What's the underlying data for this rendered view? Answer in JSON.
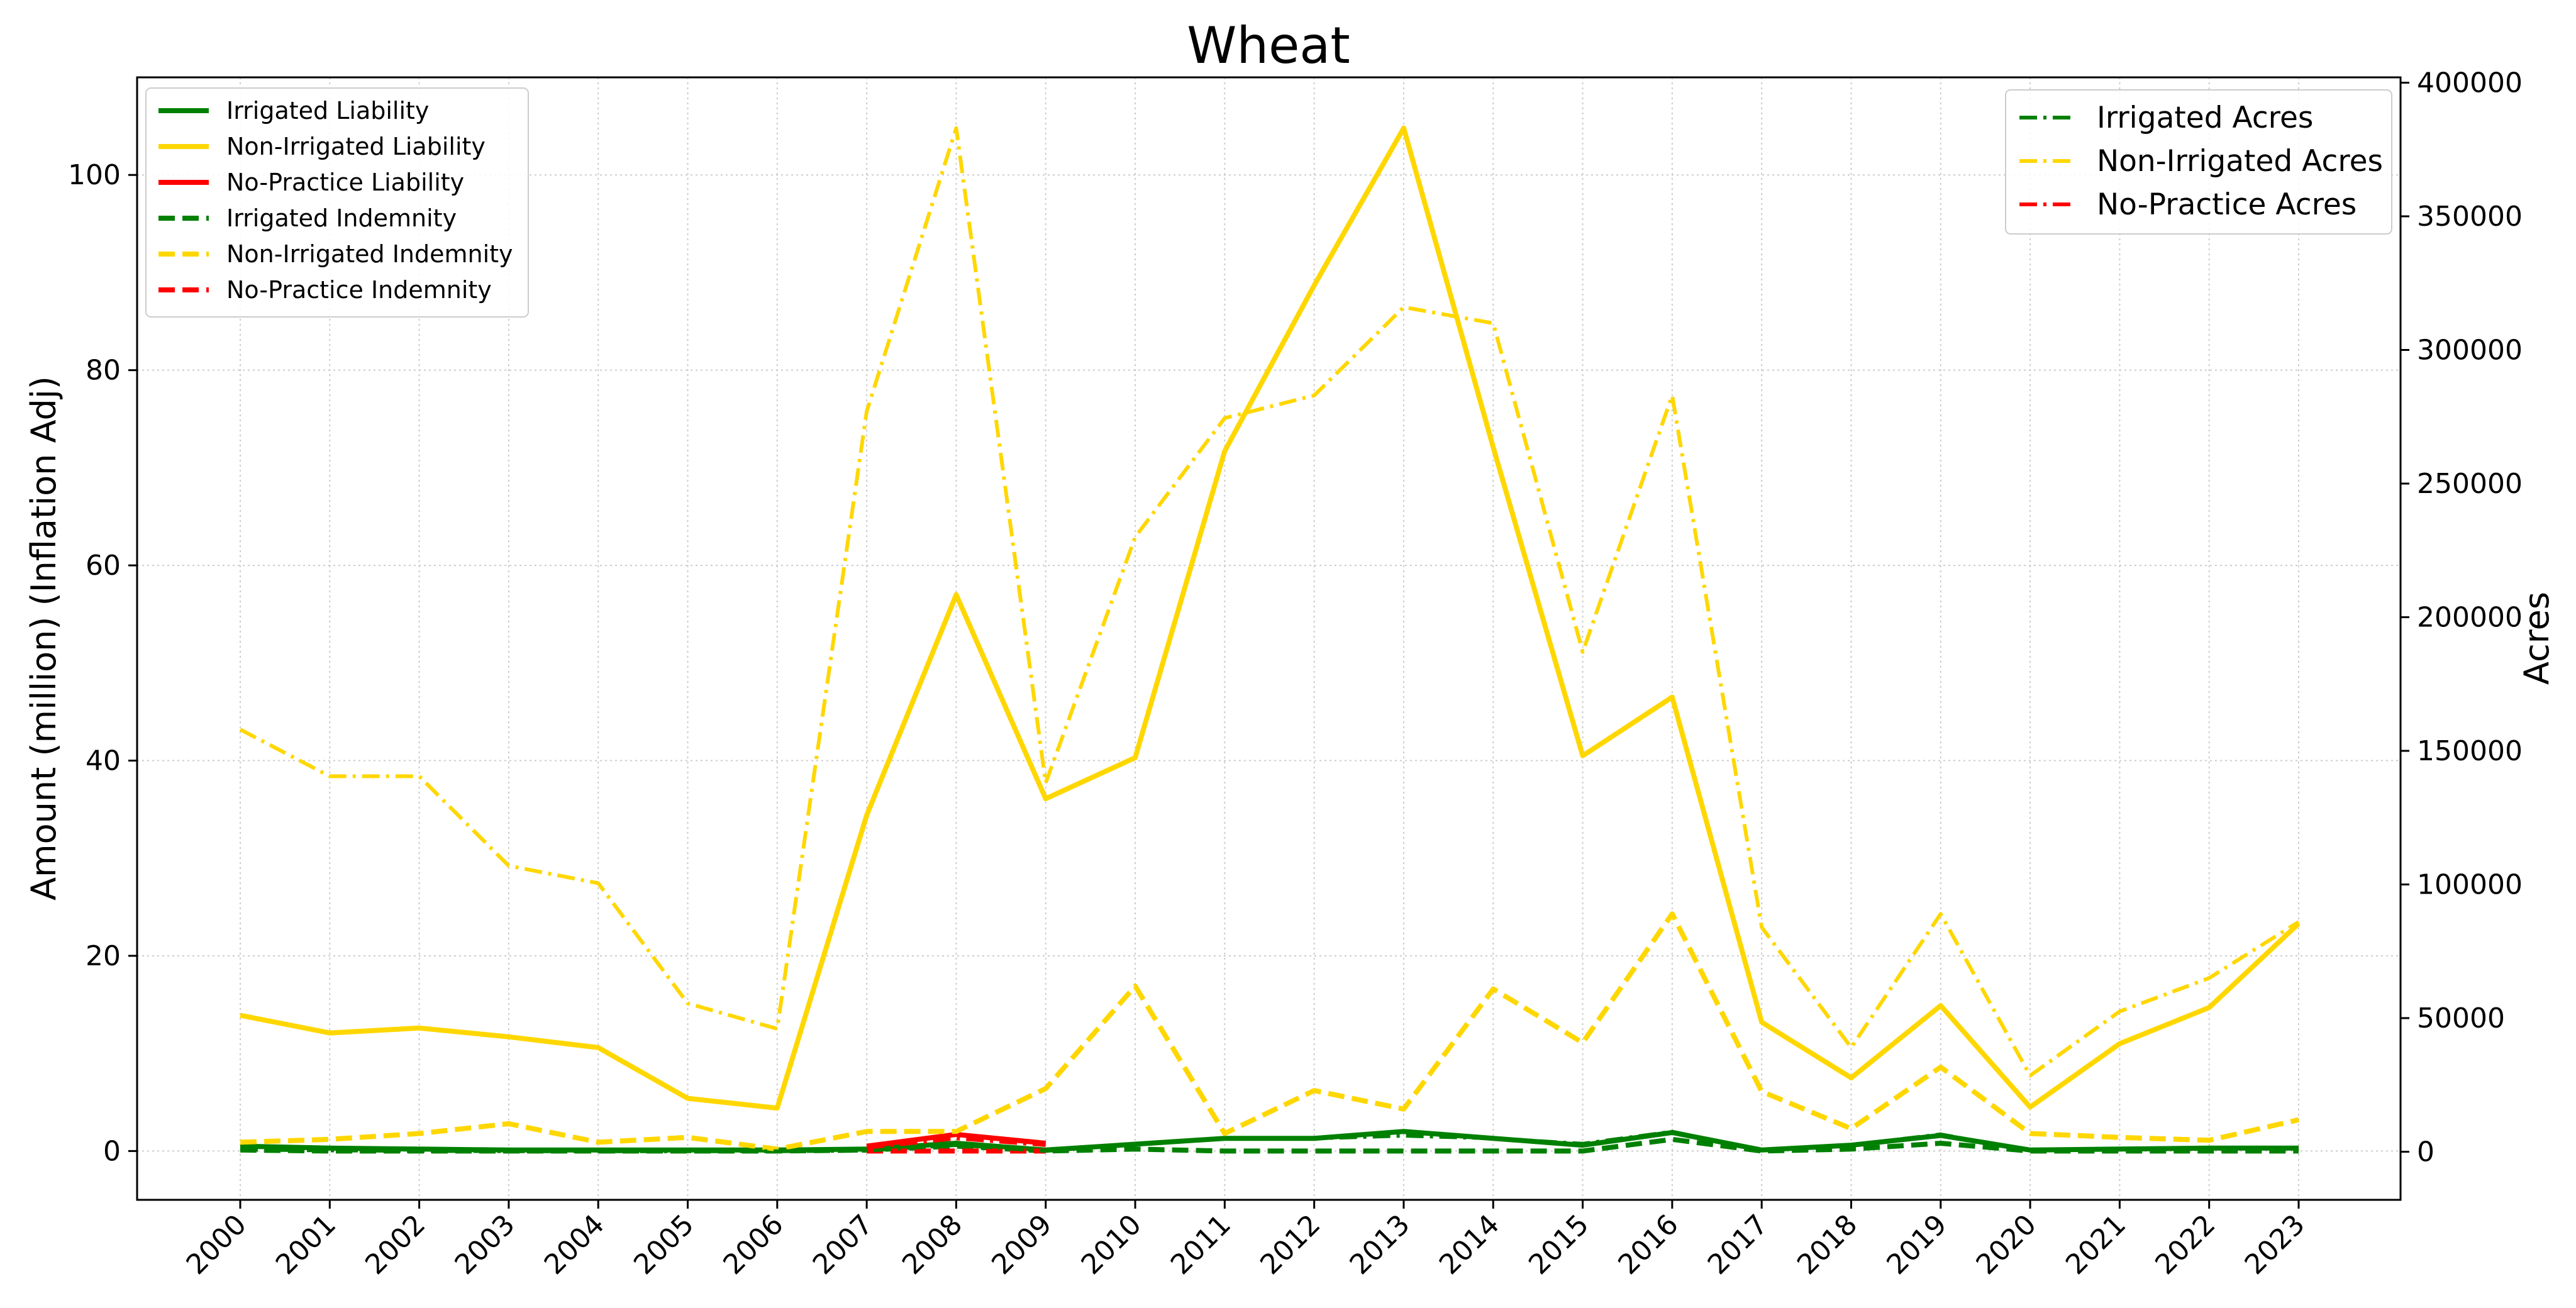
{
  "chart_data": {
    "type": "line",
    "title": "Wheat",
    "xlabel": "",
    "ylabel": "Amount (million) (Inflation Adj)",
    "y2label": "Acres",
    "categories": [
      "2000",
      "2001",
      "2002",
      "2003",
      "2004",
      "2005",
      "2006",
      "2007",
      "2008",
      "2009",
      "2010",
      "2011",
      "2012",
      "2013",
      "2014",
      "2015",
      "2016",
      "2017",
      "2018",
      "2019",
      "2020",
      "2021",
      "2022",
      "2023"
    ],
    "ylim": [
      -5,
      110
    ],
    "y2lim": [
      -18000,
      402000
    ],
    "yticks": [
      0,
      20,
      40,
      60,
      80,
      100
    ],
    "y2ticks": [
      0,
      50000,
      100000,
      150000,
      200000,
      250000,
      300000,
      350000,
      400000
    ],
    "grid": true,
    "legend_left_placement": "upper-left",
    "legend_right_placement": "upper-right",
    "colors": {
      "irrigated": "#008000",
      "non_irrigated": "#FFD700",
      "no_practice": "#FF0000"
    },
    "series": [
      {
        "name": "Irrigated Liability",
        "axis": "left",
        "color": "#008000",
        "style": "solid",
        "values": [
          0.5,
          0.3,
          0.2,
          0.1,
          0.1,
          0.1,
          0.1,
          0.2,
          0.8,
          0.1,
          0.7,
          1.3,
          1.3,
          2.0,
          1.3,
          0.6,
          1.9,
          0.1,
          0.6,
          1.6,
          0.1,
          0.2,
          0.3,
          0.3
        ]
      },
      {
        "name": "Non-Irrigated Liability",
        "axis": "left",
        "color": "#FFD700",
        "style": "solid",
        "values": [
          13.9,
          12.1,
          12.6,
          11.7,
          10.6,
          5.4,
          4.4,
          34.4,
          57.0,
          36.1,
          40.3,
          71.7,
          88.7,
          104.8,
          72.1,
          40.5,
          46.5,
          13.2,
          7.5,
          14.9,
          4.5,
          11.0,
          14.7,
          23.3
        ]
      },
      {
        "name": "No-Practice Liability",
        "axis": "left",
        "color": "#FF0000",
        "style": "solid",
        "x": [
          "2007",
          "2008",
          "2009"
        ],
        "values": [
          0.5,
          1.7,
          0.8
        ]
      },
      {
        "name": "Irrigated Indemnity",
        "axis": "left",
        "color": "#008000",
        "style": "dashed",
        "values": [
          0.1,
          0.0,
          0.0,
          0.0,
          0.0,
          0.0,
          0.0,
          0.1,
          0.5,
          0.0,
          0.2,
          0.0,
          0.0,
          0.0,
          0.0,
          0.0,
          1.2,
          0.0,
          0.2,
          0.8,
          0.0,
          0.0,
          0.0,
          0.0
        ]
      },
      {
        "name": "Non-Irrigated Indemnity",
        "axis": "left",
        "color": "#FFD700",
        "style": "dashed",
        "values": [
          0.9,
          1.2,
          1.8,
          2.8,
          0.9,
          1.4,
          0.2,
          2.0,
          2.0,
          6.4,
          16.9,
          1.8,
          6.2,
          4.3,
          16.6,
          11.1,
          24.3,
          6.1,
          2.3,
          8.6,
          1.8,
          1.4,
          1.1,
          3.2
        ]
      },
      {
        "name": "No-Practice Indemnity",
        "axis": "left",
        "color": "#FF0000",
        "style": "dashed",
        "x": [
          "2007",
          "2008",
          "2009"
        ],
        "values": [
          0.0,
          0.0,
          0.0
        ]
      },
      {
        "name": "Irrigated Acres",
        "axis": "right",
        "color": "#008000",
        "style": "dashdot",
        "values": [
          800,
          500,
          300,
          200,
          200,
          200,
          200,
          400,
          2500,
          300,
          3000,
          5000,
          5000,
          6000,
          5000,
          3000,
          7500,
          500,
          2500,
          6500,
          400,
          800,
          1200,
          1200
        ]
      },
      {
        "name": "Non-Irrigated Acres",
        "axis": "right",
        "color": "#FFD700",
        "style": "dashdot",
        "values": [
          158000,
          140500,
          140500,
          107000,
          100500,
          55500,
          46000,
          277000,
          383000,
          138000,
          230000,
          274500,
          283000,
          316000,
          310000,
          187000,
          283000,
          84000,
          39000,
          89000,
          28500,
          52500,
          65000,
          86000
        ]
      },
      {
        "name": "No-Practice Acres",
        "axis": "right",
        "color": "#FF0000",
        "style": "dashdot",
        "x": [
          "2007",
          "2008",
          "2009"
        ],
        "values": [
          1500,
          5000,
          2500
        ]
      }
    ]
  }
}
